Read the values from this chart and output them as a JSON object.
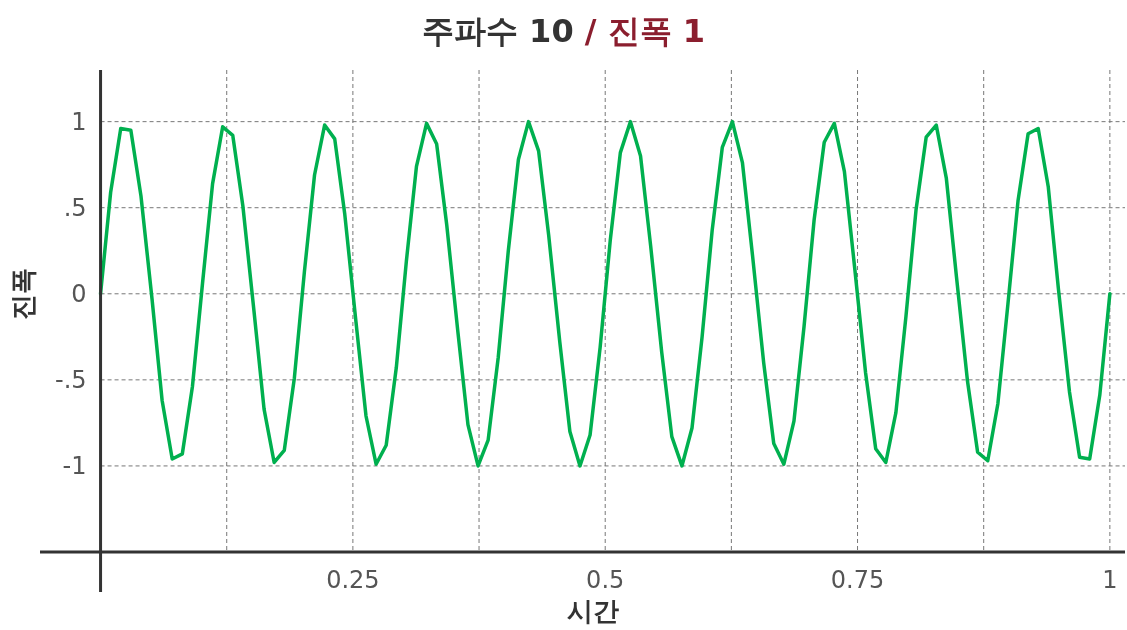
{
  "chart_data": {
    "type": "line",
    "title": "주파수 10 / 진폭 1",
    "xlabel": "시간",
    "ylabel": "진폭",
    "xlim": [
      -0.06,
      1.015
    ],
    "ylim": [
      -1.5,
      1.3
    ],
    "xticks": [
      {
        "value": 0.125,
        "label": null
      },
      {
        "value": 0.25,
        "label": "0.25"
      },
      {
        "value": 0.375,
        "label": null
      },
      {
        "value": 0.5,
        "label": "0.5"
      },
      {
        "value": 0.625,
        "label": null
      },
      {
        "value": 0.75,
        "label": "0.75"
      },
      {
        "value": 0.875,
        "label": null
      },
      1
    ],
    "yticks": [
      -1,
      {
        "value": -0.5,
        "label": "-.5"
      },
      0,
      {
        "value": 0.5,
        "label": ".5"
      },
      1
    ],
    "grid": true,
    "line_style": "solid",
    "series": [
      {
        "color": "#00b04f",
        "x": [
          0,
          0.01,
          0.02,
          0.03,
          0.04,
          0.051,
          0.061,
          0.071,
          0.081,
          0.091,
          0.101,
          0.111,
          0.121,
          0.131,
          0.141,
          0.152,
          0.162,
          0.172,
          0.182,
          0.192,
          0.202,
          0.212,
          0.222,
          0.232,
          0.242,
          0.253,
          0.263,
          0.273,
          0.283,
          0.293,
          0.303,
          0.313,
          0.323,
          0.333,
          0.343,
          0.354,
          0.364,
          0.374,
          0.384,
          0.394,
          0.404,
          0.414,
          0.424,
          0.434,
          0.444,
          0.455,
          0.465,
          0.475,
          0.485,
          0.495,
          0.505,
          0.515,
          0.525,
          0.535,
          0.545,
          0.556,
          0.566,
          0.576,
          0.586,
          0.596,
          0.606,
          0.616,
          0.626,
          0.636,
          0.646,
          0.657,
          0.667,
          0.677,
          0.687,
          0.697,
          0.707,
          0.717,
          0.727,
          0.737,
          0.747,
          0.758,
          0.768,
          0.778,
          0.788,
          0.798,
          0.808,
          0.818,
          0.828,
          0.838,
          0.848,
          0.859,
          0.869,
          0.879,
          0.889,
          0.899,
          0.909,
          0.919,
          0.929,
          0.939,
          0.949,
          0.96,
          0.97,
          0.98,
          0.99,
          1
        ],
        "values": [
          0,
          0.59,
          0.96,
          0.95,
          0.57,
          -0.03,
          -0.62,
          -0.96,
          -0.93,
          -0.54,
          0.06,
          0.64,
          0.97,
          0.92,
          0.51,
          -0.1,
          -0.67,
          -0.98,
          -0.91,
          -0.49,
          0.13,
          0.69,
          0.98,
          0.9,
          0.46,
          -0.16,
          -0.71,
          -0.99,
          -0.88,
          -0.43,
          0.19,
          0.74,
          0.99,
          0.87,
          0.4,
          -0.22,
          -0.76,
          -1,
          -0.85,
          -0.37,
          0.25,
          0.78,
          1,
          0.83,
          0.34,
          -0.28,
          -0.8,
          -1,
          -0.82,
          -0.31,
          0.31,
          0.82,
          1,
          0.8,
          0.28,
          -0.34,
          -0.83,
          -1,
          -0.78,
          -0.25,
          0.37,
          0.85,
          1,
          0.76,
          0.22,
          -0.4,
          -0.87,
          -0.99,
          -0.74,
          -0.19,
          0.43,
          0.88,
          0.99,
          0.71,
          0.16,
          -0.46,
          -0.9,
          -0.98,
          -0.69,
          -0.13,
          0.49,
          0.91,
          0.98,
          0.67,
          0.1,
          -0.51,
          -0.92,
          -0.97,
          -0.64,
          -0.06,
          0.54,
          0.93,
          0.96,
          0.62,
          0.03,
          -0.57,
          -0.95,
          -0.96,
          -0.59,
          0
        ]
      }
    ]
  }
}
